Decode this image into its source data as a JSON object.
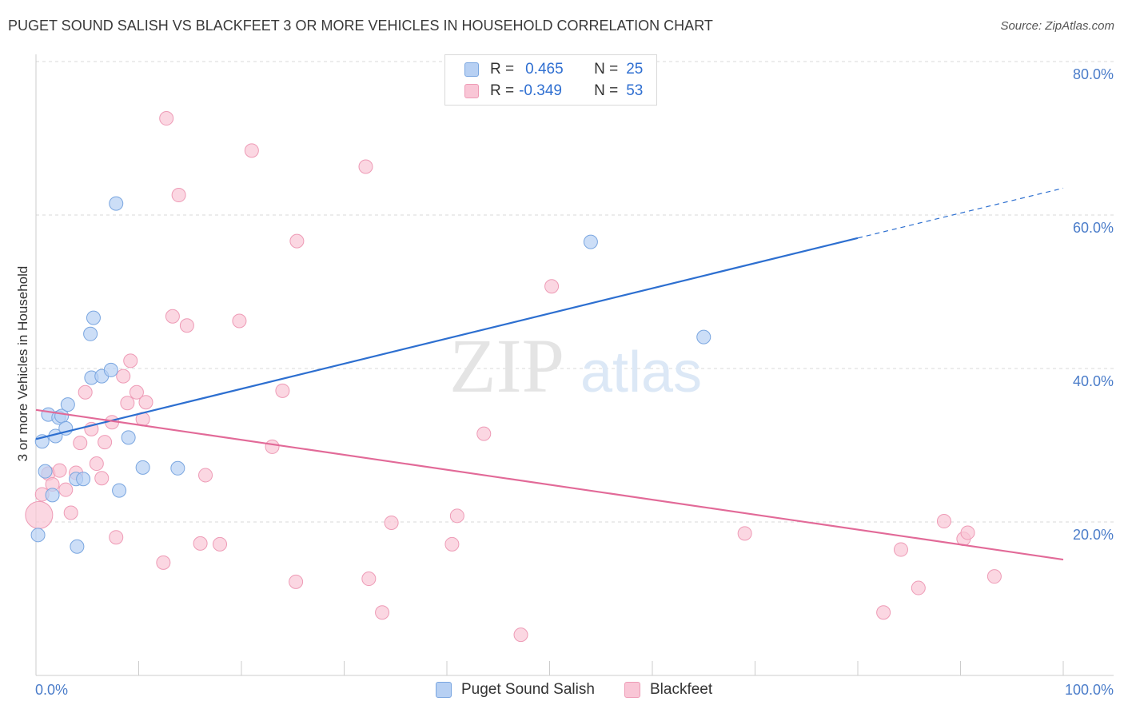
{
  "title": "PUGET SOUND SALISH VS BLACKFEET 3 OR MORE VEHICLES IN HOUSEHOLD CORRELATION CHART",
  "source": "Source: ZipAtlas.com",
  "watermark": {
    "zip": "ZIP",
    "atlas": "atlas"
  },
  "legend": {
    "series1": {
      "r_label": "R =",
      "r_value": "0.465",
      "n_label": "N =",
      "n_value": "25"
    },
    "series2": {
      "r_label": "R =",
      "r_value": "-0.349",
      "n_label": "N =",
      "n_value": "53"
    }
  },
  "bottom_legend": {
    "series1": "Puget Sound Salish",
    "series2": "Blackfeet"
  },
  "colors": {
    "blue_fill": "#b7d0f3",
    "blue_stroke": "#7aa6e0",
    "blue_line": "#2d6fd0",
    "pink_fill": "#f9c6d6",
    "pink_stroke": "#ee9bb6",
    "pink_line": "#e26a98",
    "grid": "#d9d9d9",
    "tick_label": "#4a7cc9"
  },
  "chart_data": {
    "type": "scatter",
    "title": "PUGET SOUND SALISH VS BLACKFEET 3 OR MORE VEHICLES IN HOUSEHOLD CORRELATION CHART",
    "xlabel": "",
    "ylabel": "3 or more Vehicles in Household",
    "xlim": [
      0,
      100
    ],
    "ylim": [
      0,
      80
    ],
    "x_tick_labels": [
      {
        "value": 0,
        "label": "0.0%"
      },
      {
        "value": 100,
        "label": "100.0%"
      }
    ],
    "y_tick_labels": [
      {
        "value": 20,
        "label": "20.0%"
      },
      {
        "value": 40,
        "label": "40.0%"
      },
      {
        "value": 60,
        "label": "60.0%"
      },
      {
        "value": 80,
        "label": "80.0%"
      }
    ],
    "series": [
      {
        "name": "Puget Sound Salish",
        "points": [
          {
            "x": 0.2,
            "y": 18.3
          },
          {
            "x": 0.6,
            "y": 30.5
          },
          {
            "x": 0.9,
            "y": 26.6
          },
          {
            "x": 1.2,
            "y": 34.0
          },
          {
            "x": 1.6,
            "y": 23.5
          },
          {
            "x": 1.9,
            "y": 31.2
          },
          {
            "x": 2.2,
            "y": 33.6
          },
          {
            "x": 2.5,
            "y": 33.8
          },
          {
            "x": 2.9,
            "y": 32.2
          },
          {
            "x": 3.1,
            "y": 35.3
          },
          {
            "x": 3.9,
            "y": 25.6
          },
          {
            "x": 4.0,
            "y": 16.8
          },
          {
            "x": 4.6,
            "y": 25.6
          },
          {
            "x": 5.3,
            "y": 44.5
          },
          {
            "x": 5.4,
            "y": 38.8
          },
          {
            "x": 5.6,
            "y": 46.6
          },
          {
            "x": 6.4,
            "y": 39.0
          },
          {
            "x": 7.3,
            "y": 39.8
          },
          {
            "x": 7.8,
            "y": 61.5
          },
          {
            "x": 8.1,
            "y": 24.1
          },
          {
            "x": 9.0,
            "y": 31.0
          },
          {
            "x": 10.4,
            "y": 27.1
          },
          {
            "x": 13.8,
            "y": 27.0
          },
          {
            "x": 54.0,
            "y": 56.5
          },
          {
            "x": 65.0,
            "y": 44.1
          }
        ],
        "trend": {
          "x": [
            0,
            80
          ],
          "y": [
            30.8,
            57.0
          ],
          "dashed_extension": {
            "x": [
              80,
              100
            ],
            "y": [
              57.0,
              63.5
            ]
          }
        }
      },
      {
        "name": "Blackfeet",
        "points": [
          {
            "x": 0.3,
            "y": 20.9
          },
          {
            "x": 0.6,
            "y": 23.6
          },
          {
            "x": 1.2,
            "y": 26.3
          },
          {
            "x": 1.6,
            "y": 24.9
          },
          {
            "x": 2.3,
            "y": 26.7
          },
          {
            "x": 2.9,
            "y": 24.2
          },
          {
            "x": 3.4,
            "y": 21.2
          },
          {
            "x": 3.9,
            "y": 26.4
          },
          {
            "x": 4.3,
            "y": 30.3
          },
          {
            "x": 4.8,
            "y": 36.9
          },
          {
            "x": 5.4,
            "y": 32.1
          },
          {
            "x": 5.9,
            "y": 27.6
          },
          {
            "x": 6.4,
            "y": 25.7
          },
          {
            "x": 6.7,
            "y": 30.4
          },
          {
            "x": 7.4,
            "y": 33.0
          },
          {
            "x": 7.8,
            "y": 18.0
          },
          {
            "x": 8.5,
            "y": 39.0
          },
          {
            "x": 8.9,
            "y": 35.5
          },
          {
            "x": 9.2,
            "y": 41.0
          },
          {
            "x": 9.8,
            "y": 36.9
          },
          {
            "x": 10.4,
            "y": 33.4
          },
          {
            "x": 10.7,
            "y": 35.6
          },
          {
            "x": 12.4,
            "y": 14.7
          },
          {
            "x": 12.7,
            "y": 72.6
          },
          {
            "x": 13.3,
            "y": 46.8
          },
          {
            "x": 13.9,
            "y": 62.6
          },
          {
            "x": 14.7,
            "y": 45.6
          },
          {
            "x": 16.0,
            "y": 17.2
          },
          {
            "x": 16.5,
            "y": 26.1
          },
          {
            "x": 17.9,
            "y": 17.1
          },
          {
            "x": 19.8,
            "y": 46.2
          },
          {
            "x": 21.0,
            "y": 68.4
          },
          {
            "x": 23.0,
            "y": 29.8
          },
          {
            "x": 24.0,
            "y": 37.1
          },
          {
            "x": 25.3,
            "y": 12.2
          },
          {
            "x": 25.4,
            "y": 56.6
          },
          {
            "x": 32.1,
            "y": 66.3
          },
          {
            "x": 32.4,
            "y": 12.6
          },
          {
            "x": 33.7,
            "y": 8.2
          },
          {
            "x": 34.6,
            "y": 19.9
          },
          {
            "x": 40.5,
            "y": 17.1
          },
          {
            "x": 41.0,
            "y": 20.8
          },
          {
            "x": 43.6,
            "y": 31.5
          },
          {
            "x": 47.2,
            "y": 5.3
          },
          {
            "x": 50.2,
            "y": 50.7
          },
          {
            "x": 69.0,
            "y": 18.5
          },
          {
            "x": 82.5,
            "y": 8.2
          },
          {
            "x": 84.2,
            "y": 16.4
          },
          {
            "x": 85.9,
            "y": 11.4
          },
          {
            "x": 88.4,
            "y": 20.1
          },
          {
            "x": 90.3,
            "y": 17.8
          },
          {
            "x": 90.7,
            "y": 18.6
          },
          {
            "x": 93.3,
            "y": 12.9
          }
        ],
        "trend": {
          "x": [
            0,
            100
          ],
          "y": [
            34.6,
            15.1
          ]
        }
      }
    ]
  }
}
